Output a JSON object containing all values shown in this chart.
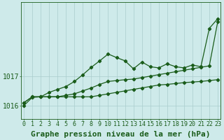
{
  "hours": [
    0,
    1,
    2,
    3,
    4,
    5,
    6,
    7,
    8,
    9,
    10,
    11,
    12,
    13,
    14,
    15,
    16,
    17,
    18,
    19,
    20,
    21,
    22,
    23
  ],
  "series_flat": [
    1016.1,
    1016.3,
    1016.3,
    1016.3,
    1016.3,
    1016.3,
    1016.3,
    1016.3,
    1016.3,
    1016.35,
    1016.4,
    1016.45,
    1016.5,
    1016.55,
    1016.6,
    1016.65,
    1016.7,
    1016.72,
    1016.75,
    1016.78,
    1016.8,
    1016.82,
    1016.85,
    1016.88
  ],
  "series_diag": [
    1016.1,
    1016.3,
    1016.3,
    1016.3,
    1016.3,
    1016.35,
    1016.4,
    1016.5,
    1016.6,
    1016.72,
    1016.82,
    1016.85,
    1016.88,
    1016.9,
    1016.95,
    1017.0,
    1017.05,
    1017.1,
    1017.15,
    1017.2,
    1017.25,
    1017.3,
    1017.35,
    1018.85
  ],
  "series_main": [
    1016.0,
    1016.28,
    1016.3,
    1016.45,
    1016.55,
    1016.65,
    1016.82,
    1017.05,
    1017.3,
    1017.52,
    1017.75,
    1017.63,
    1017.52,
    1017.25,
    1017.48,
    1017.32,
    1017.28,
    1017.42,
    1017.32,
    1017.28,
    1017.38,
    1017.32,
    1018.62,
    1018.95
  ],
  "line_color": "#1a5c1a",
  "bg_color": "#ceeaea",
  "grid_color": "#aacccc",
  "axis_color": "#1a5c1a",
  "title": "Graphe pression niveau de la mer (hPa)",
  "yticks": [
    1016,
    1017
  ],
  "ylim": [
    1015.55,
    1019.5
  ],
  "xlim": [
    -0.3,
    23.3
  ],
  "title_fontsize": 8,
  "tick_fontsize": 6
}
